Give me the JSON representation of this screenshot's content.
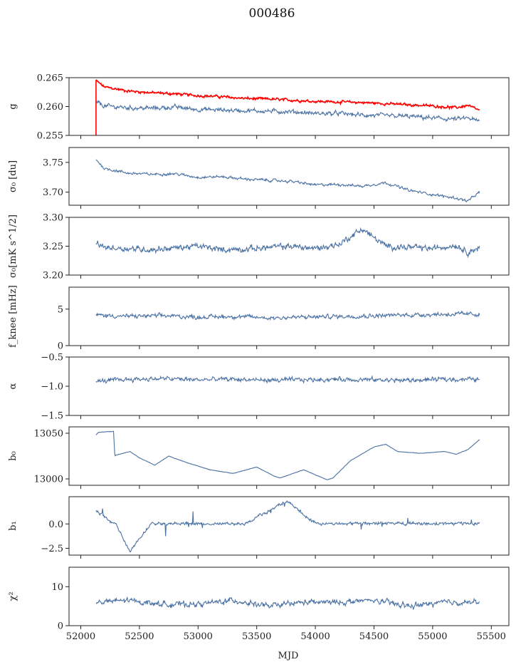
{
  "figure_title": "000486",
  "colors": {
    "series": "#4c72a4",
    "highlight": "#ff0000",
    "axes": "#222222"
  },
  "chart_data": {
    "type": "line",
    "xlabel": "MJD",
    "xlim": [
      51900,
      55650
    ],
    "xticks": [
      52000,
      52500,
      53000,
      53500,
      54000,
      54500,
      55000,
      55500
    ],
    "x_range": [
      52130,
      55400
    ],
    "panels": [
      {
        "id": "g",
        "ylabel": "g",
        "ylim": [
          0.255,
          0.265
        ],
        "yticks": [
          0.255,
          0.26,
          0.265
        ],
        "ytick_labels": [
          "0.255",
          "0.260",
          "0.265"
        ],
        "series": [
          {
            "color": "red",
            "x": [
              52130,
              52200,
              52400,
              52600,
              52800,
              53000,
              53200,
              53400,
              53600,
              53800,
              54000,
              54200,
              54400,
              54600,
              54800,
              55000,
              55200,
              55300,
              55400
            ],
            "y": [
              0.2645,
              0.2634,
              0.2627,
              0.2624,
              0.2622,
              0.2619,
              0.2617,
              0.2614,
              0.2613,
              0.2611,
              0.2609,
              0.2608,
              0.2607,
              0.2605,
              0.2603,
              0.2601,
              0.2598,
              0.2602,
              0.2593
            ]
          },
          {
            "color": "blue",
            "x": [
              52130,
              52200,
              52400,
              52600,
              52800,
              53000,
              53200,
              53400,
              53600,
              53800,
              54000,
              54200,
              54400,
              54600,
              54800,
              55000,
              55200,
              55300,
              55400
            ],
            "y": [
              0.2608,
              0.2601,
              0.2598,
              0.2597,
              0.2599,
              0.2595,
              0.2594,
              0.2593,
              0.2592,
              0.2591,
              0.2588,
              0.2588,
              0.2585,
              0.2584,
              0.2583,
              0.258,
              0.2578,
              0.258,
              0.2574
            ]
          }
        ]
      },
      {
        "id": "sigma0_du",
        "ylabel": "σ₀ [du]",
        "ylim": [
          3.678,
          3.775
        ],
        "yticks": [
          3.7,
          3.75
        ],
        "ytick_labels": [
          "3.70",
          "3.75"
        ],
        "series": [
          {
            "color": "blue",
            "x": [
              52130,
              52200,
              52400,
              52600,
              52800,
              53000,
              53200,
              53400,
              53600,
              53800,
              54000,
              54200,
              54400,
              54600,
              54800,
              55000,
              55200,
              55300,
              55400
            ],
            "y": [
              3.755,
              3.74,
              3.732,
              3.73,
              3.731,
              3.725,
              3.726,
              3.722,
              3.72,
              3.718,
              3.712,
              3.713,
              3.71,
              3.716,
              3.703,
              3.696,
              3.69,
              3.685,
              3.7
            ]
          }
        ]
      },
      {
        "id": "sigma0_mk",
        "ylabel": "σ₀[mK s^1/2]",
        "ylim": [
          3.2,
          3.3
        ],
        "yticks": [
          3.2,
          3.25,
          3.3
        ],
        "ytick_labels": [
          "3.20",
          "3.25",
          "3.30"
        ],
        "series": [
          {
            "color": "blue",
            "x": [
              52130,
              52200,
              52400,
              52600,
              52800,
              53000,
              53200,
              53400,
              53600,
              53800,
              54000,
              54200,
              54400,
              54600,
              54800,
              55000,
              55200,
              55300,
              55400
            ],
            "y": [
              3.255,
              3.248,
              3.246,
              3.244,
              3.247,
              3.25,
              3.244,
              3.245,
              3.248,
              3.25,
              3.246,
              3.253,
              3.28,
              3.25,
              3.248,
              3.246,
              3.252,
              3.24,
              3.247
            ]
          }
        ]
      },
      {
        "id": "fknee",
        "ylabel": "f_knee [mHz]",
        "ylim": [
          0,
          8
        ],
        "yticks": [
          0,
          5
        ],
        "ytick_labels": [
          "0",
          "5"
        ],
        "series": [
          {
            "color": "blue",
            "x": [
              52130,
              52400,
              52700,
              53000,
              53300,
              53600,
              53900,
              54200,
              54500,
              54800,
              55100,
              55400
            ],
            "y": [
              4.2,
              4.0,
              4.1,
              3.9,
              4.0,
              3.8,
              3.9,
              4.0,
              4.1,
              4.2,
              4.3,
              4.3
            ]
          }
        ]
      },
      {
        "id": "alpha",
        "ylabel": "α",
        "ylim": [
          -1.5,
          -0.5
        ],
        "yticks": [
          -1.5,
          -1.0,
          -0.5
        ],
        "ytick_labels": [
          "−1.5",
          "−1.0",
          "−0.5"
        ],
        "series": [
          {
            "color": "blue",
            "x": [
              52130,
              52400,
              52700,
              53000,
              53300,
              53600,
              53900,
              54200,
              54500,
              54800,
              55100,
              55400
            ],
            "y": [
              -0.92,
              -0.88,
              -0.87,
              -0.89,
              -0.88,
              -0.9,
              -0.89,
              -0.88,
              -0.89,
              -0.9,
              -0.88,
              -0.88
            ]
          }
        ]
      },
      {
        "id": "b0",
        "ylabel": "b₀",
        "ylim": [
          12993,
          13057
        ],
        "yticks": [
          13000,
          13050
        ],
        "ytick_labels": [
          "13000",
          "13050"
        ],
        "series": [
          {
            "color": "blue",
            "x": [
              52130,
              52150,
              52280,
              52290,
              52300,
              52420,
              52500,
              52600,
              52630,
              52750,
              52900,
              53100,
              53300,
              53500,
              53650,
              53700,
              53900,
              54100,
              54150,
              54300,
              54500,
              54600,
              54700,
              54900,
              55100,
              55200,
              55300,
              55400
            ],
            "y": [
              13048,
              13051,
              13052,
              13025,
              13026,
              13030,
              13023,
              13017,
              13015,
              13025,
              13018,
              13010,
              13006,
              13013,
              13003,
              13001,
              13010,
              12999,
              13001,
              13020,
              13035,
              13038,
              13030,
              13028,
              13030,
              13027,
              13032,
              13043
            ]
          }
        ]
      },
      {
        "id": "b1",
        "ylabel": "b₁",
        "ylim": [
          -3.2,
          2.8
        ],
        "yticks": [
          -2.5,
          0.0
        ],
        "ytick_labels": [
          "−2.5",
          "0.0"
        ],
        "series": [
          {
            "color": "blue",
            "x": [
              52130,
              52300,
              52420,
              52600,
              53000,
              53400,
              53760,
              54000,
              54500,
              55000,
              55400
            ],
            "y": [
              1.3,
              0.0,
              -2.8,
              0.1,
              0.0,
              0.0,
              2.4,
              0.0,
              0.1,
              0.0,
              0.1
            ]
          }
        ]
      },
      {
        "id": "chi2",
        "ylabel": "χ²",
        "ylim": [
          0,
          15
        ],
        "yticks": [
          0,
          10
        ],
        "ytick_labels": [
          "0",
          "10"
        ],
        "series": [
          {
            "color": "blue",
            "x": [
              52130,
              52400,
              52700,
              53000,
              53300,
              53600,
              53900,
              54200,
              54500,
              54800,
              55100,
              55400
            ],
            "y": [
              6,
              6.5,
              5.5,
              5.5,
              6.5,
              5,
              6,
              6,
              6.5,
              5,
              6,
              6
            ]
          }
        ]
      }
    ]
  }
}
